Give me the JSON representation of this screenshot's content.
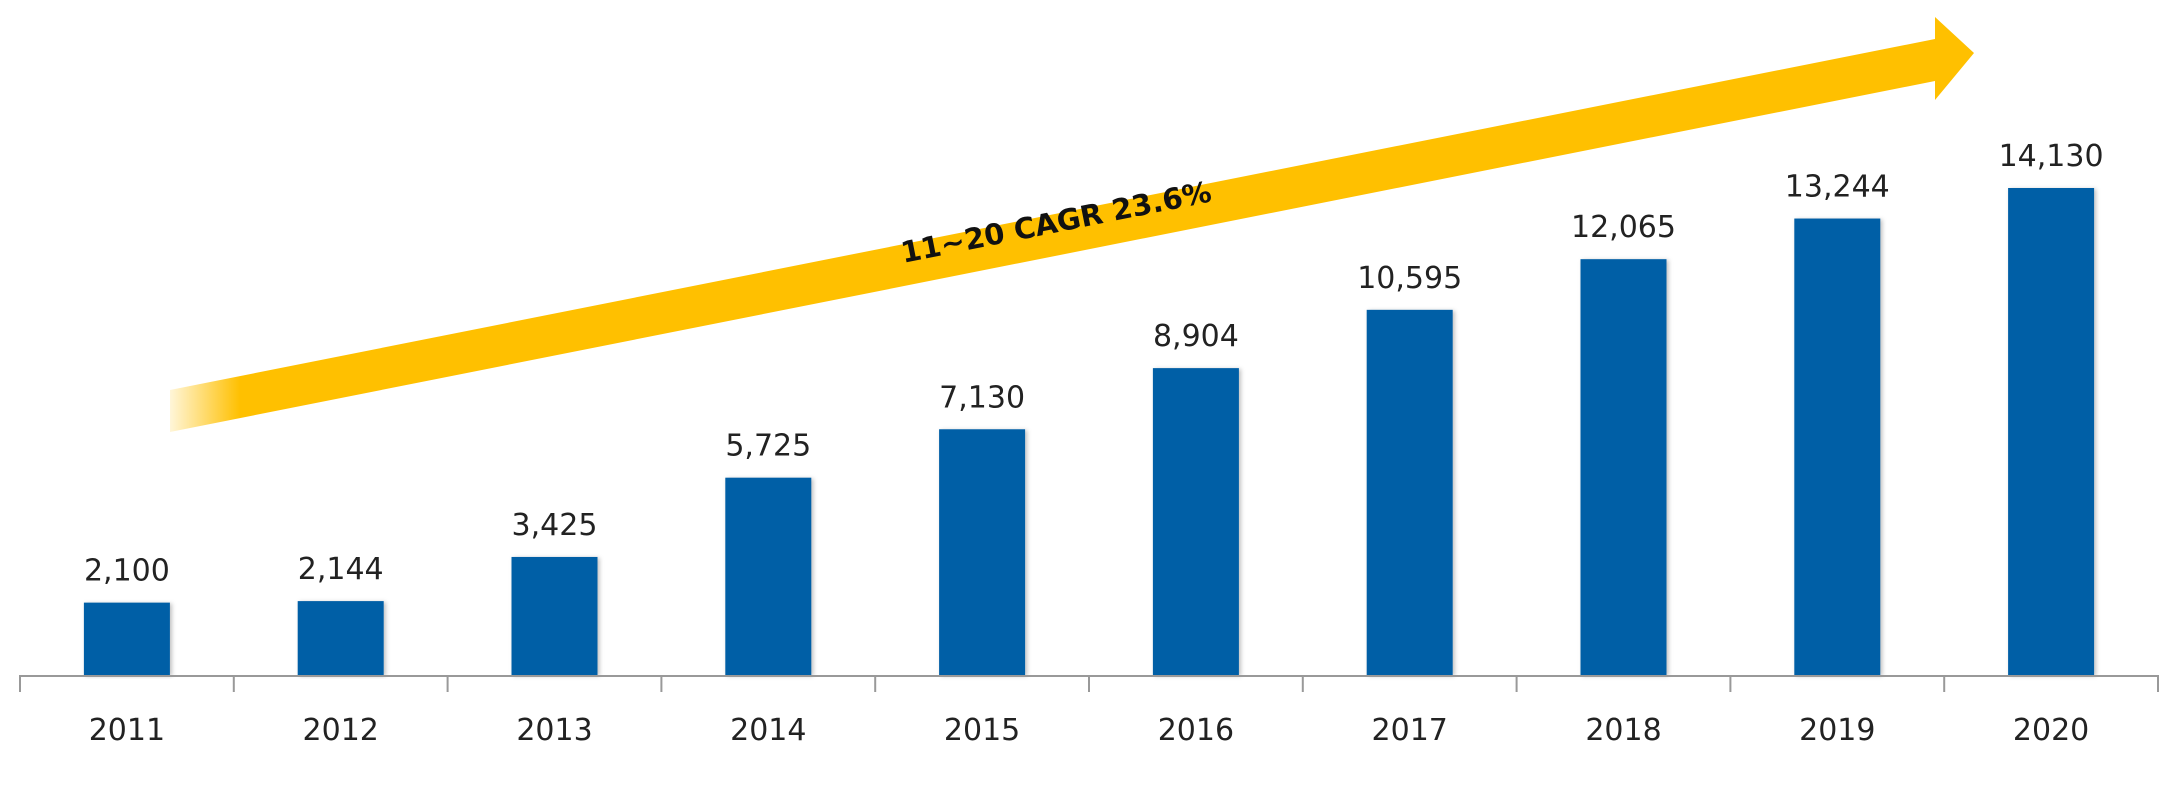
{
  "chart_data": {
    "type": "bar",
    "title": "",
    "xlabel": "",
    "ylabel": "",
    "categories": [
      "2011",
      "2012",
      "2013",
      "2014",
      "2015",
      "2016",
      "2017",
      "2018",
      "2019",
      "2020"
    ],
    "values": [
      2100,
      2144,
      3425,
      5725,
      7130,
      8904,
      10595,
      12065,
      13244,
      14130
    ],
    "value_labels": [
      "2,100",
      "2,144",
      "3,425",
      "5,725",
      "7,130",
      "8,904",
      "10,595",
      "12,065",
      "13,244",
      "14,130"
    ],
    "ylim": [
      0,
      14130
    ],
    "grid": false,
    "annotation": "11~20 CAGR 23.6%",
    "colors": {
      "bar": "#005EA6",
      "arrow": "#FFC000",
      "axis": "#999999"
    }
  }
}
